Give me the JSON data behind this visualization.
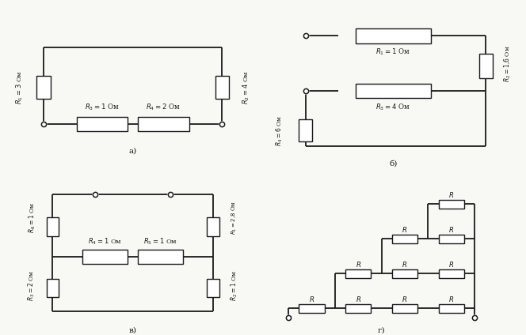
{
  "bg_color": "#f8f8f4",
  "resistor_fill": "#ffffff",
  "resistor_edge": "#1a1a1a",
  "line_color": "#1a1a1a",
  "node_color": "#1a1a1a",
  "panel_labels": [
    "а)",
    "б)",
    "в)",
    "г)"
  ],
  "lw": 1.3
}
